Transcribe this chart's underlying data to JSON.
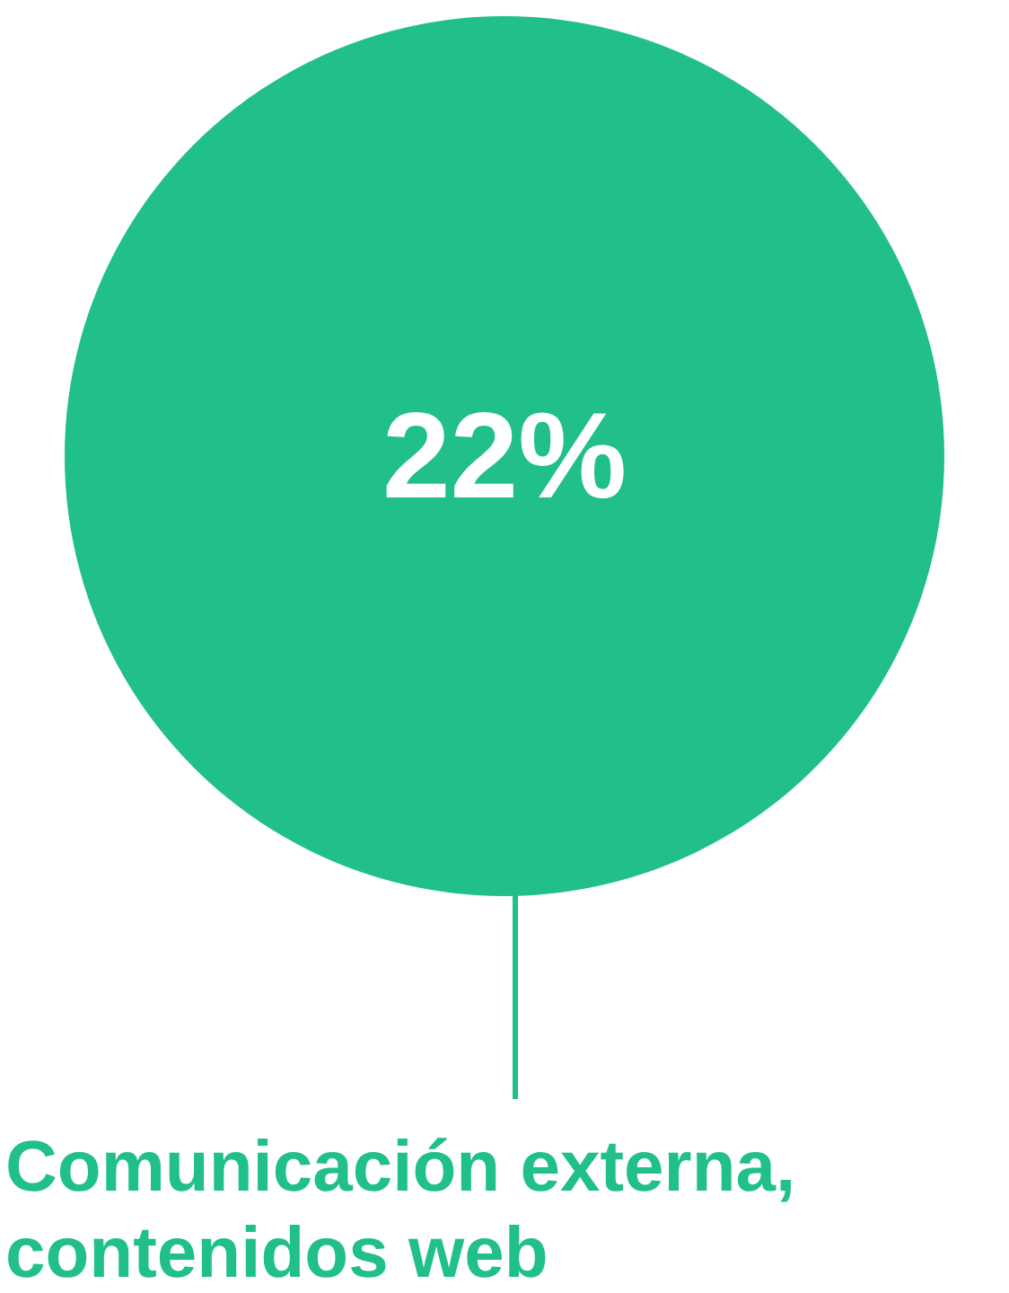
{
  "chart_data": {
    "type": "other",
    "categories": [
      "Comunicación externa, contenidos web"
    ],
    "values": [
      22
    ],
    "value_labels": [
      "22%"
    ],
    "color": "#20c088"
  }
}
